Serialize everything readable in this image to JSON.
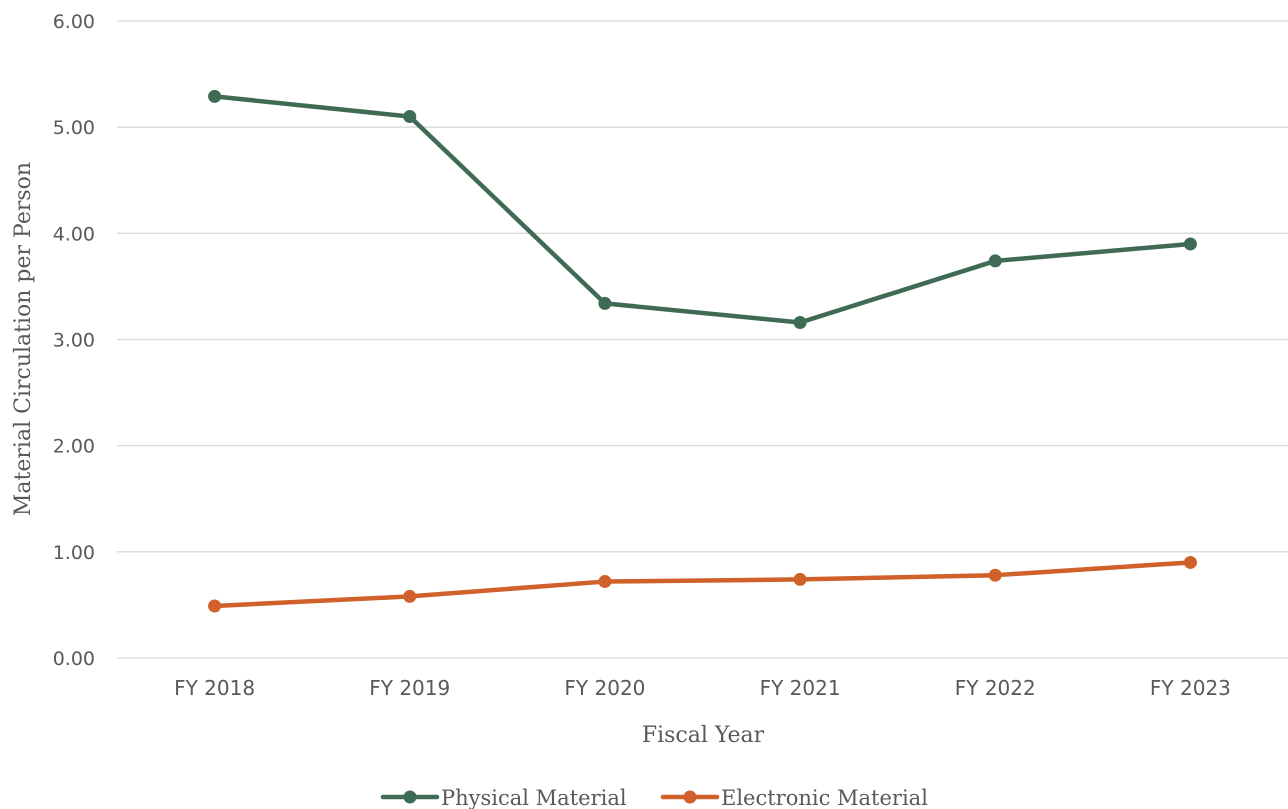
{
  "chart_data": {
    "type": "line",
    "title": "",
    "xlabel": "Fiscal Year",
    "ylabel": "Material Circulation per Person",
    "categories": [
      "FY 2018",
      "FY 2019",
      "FY 2020",
      "FY 2021",
      "FY 2022",
      "FY 2023"
    ],
    "ylim": [
      0,
      6
    ],
    "yticks": [
      "0.00",
      "1.00",
      "2.00",
      "3.00",
      "4.00",
      "5.00",
      "6.00"
    ],
    "grid": true,
    "legend_position": "bottom",
    "series": [
      {
        "name": "Physical Material",
        "color": "#3f6b55",
        "values": [
          5.29,
          5.1,
          3.34,
          3.16,
          3.74,
          3.9
        ]
      },
      {
        "name": "Electronic Material",
        "color": "#d0612a",
        "values": [
          0.49,
          0.58,
          0.72,
          0.74,
          0.78,
          0.9
        ]
      }
    ]
  }
}
